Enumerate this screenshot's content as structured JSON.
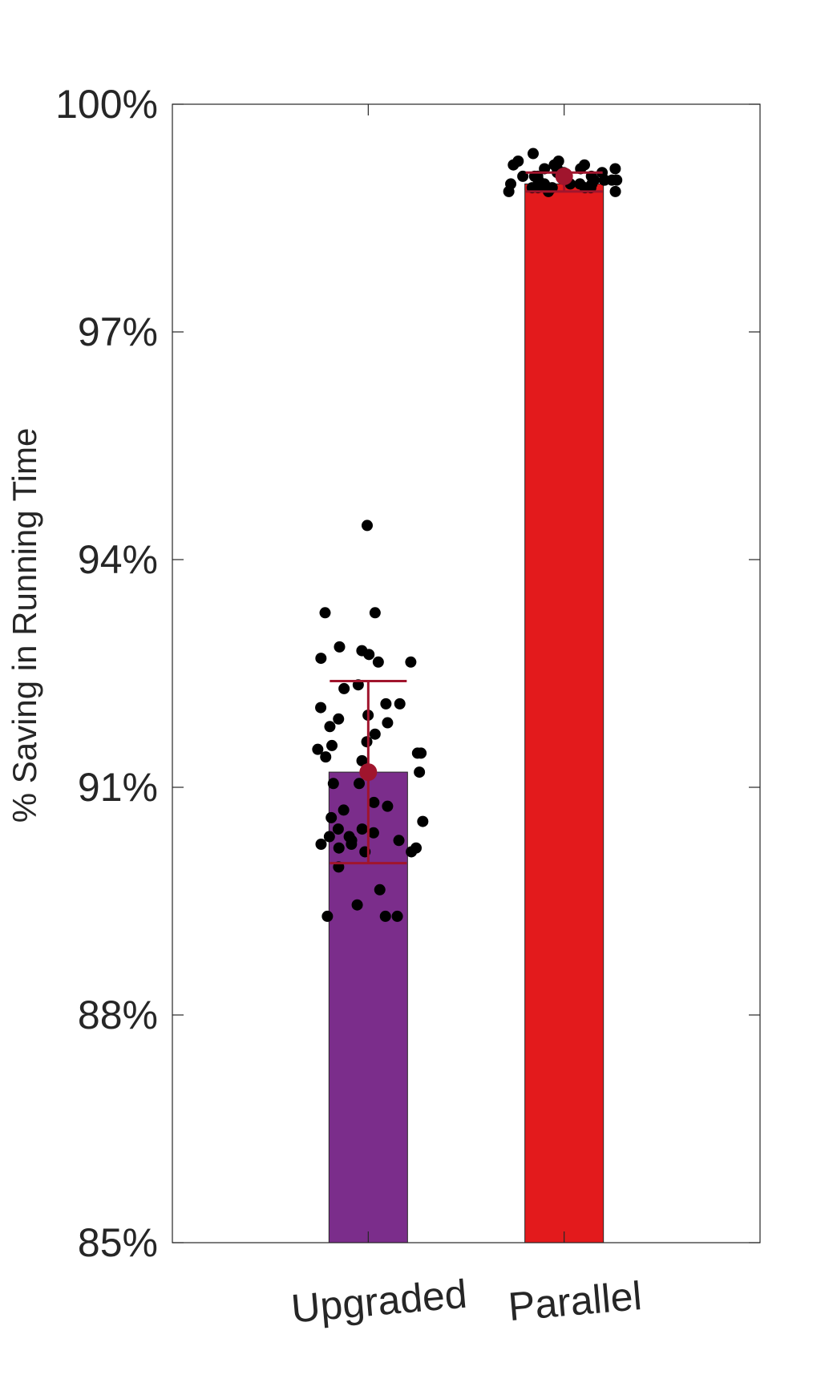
{
  "chart_data": {
    "type": "bar",
    "ylabel": "% Saving in Running Time",
    "ylim": [
      85,
      100
    ],
    "yticks": [
      85,
      88,
      91,
      94,
      97,
      100
    ],
    "ytick_labels": [
      "85%",
      "88%",
      "91%",
      "94%",
      "97%",
      "100%"
    ],
    "categories": [
      "Upgraded",
      "Parallel"
    ],
    "bars": [
      {
        "category": "Upgraded",
        "value": 91.2,
        "color": "#7B2D8B",
        "error": [
          90.0,
          92.4
        ],
        "mean_marker": 91.2,
        "points": [
          94.45,
          93.3,
          93.3,
          92.85,
          92.8,
          92.75,
          92.7,
          92.65,
          92.65,
          92.35,
          92.3,
          92.1,
          92.1,
          92.05,
          91.95,
          91.9,
          91.85,
          91.8,
          91.7,
          91.6,
          91.55,
          91.5,
          91.45,
          91.45,
          91.4,
          91.35,
          91.2,
          91.05,
          91.05,
          90.8,
          90.75,
          90.7,
          90.6,
          90.55,
          90.45,
          90.45,
          90.4,
          90.35,
          90.35,
          90.3,
          90.3,
          90.25,
          90.25,
          90.2,
          90.2,
          90.15,
          90.15,
          89.95,
          89.65,
          89.45,
          89.3,
          89.3,
          89.3
        ]
      },
      {
        "category": "Parallel",
        "value": 98.95,
        "color": "#E31A1C",
        "error": [
          98.85,
          99.1
        ],
        "mean_marker": 99.05,
        "points": [
          99.35,
          99.25,
          99.25,
          99.2,
          99.2,
          99.2,
          99.15,
          99.15,
          99.15,
          99.15,
          99.1,
          99.1,
          99.1,
          99.1,
          99.1,
          99.05,
          99.05,
          99.05,
          99.05,
          99.0,
          99.0,
          99.0,
          99.0,
          99.0,
          99.0,
          98.95,
          98.95,
          98.95,
          98.95,
          98.95,
          98.9,
          98.9,
          98.9,
          98.9,
          98.9,
          98.9,
          98.85,
          98.85,
          98.85
        ]
      }
    ],
    "error_color": "#A0152D",
    "point_color": "#000000",
    "grid": false,
    "legend": "none"
  }
}
